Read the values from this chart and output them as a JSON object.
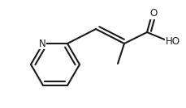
{
  "bg_color": "#ffffff",
  "line_color": "#1a1a1a",
  "line_width": 1.5,
  "font_size_N": 8.5,
  "font_size_OH": 8.5,
  "font_size_O": 8.5,
  "N_label": "N",
  "O_label": "O",
  "OH_label": "HO",
  "figsize": [
    2.3,
    1.34
  ],
  "dpi": 100
}
